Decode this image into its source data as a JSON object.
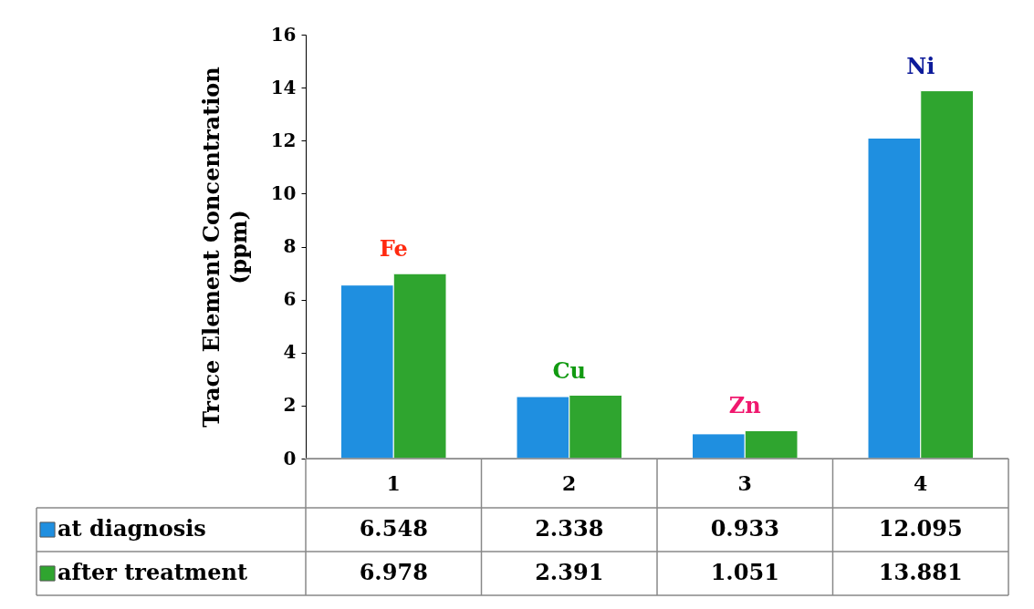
{
  "chart_data": {
    "type": "bar",
    "ylabel": "Trace Element Concentration (ppm)",
    "categories": [
      "1",
      "2",
      "3",
      "4"
    ],
    "series": [
      {
        "name": "at diagnosis",
        "color": "#1f8fe0",
        "values": [
          6.548,
          2.338,
          0.933,
          12.095
        ]
      },
      {
        "name": "after treatment",
        "color": "#2fa52f",
        "values": [
          6.978,
          2.391,
          1.051,
          13.881
        ]
      }
    ],
    "ylim": [
      0,
      16
    ],
    "yticks": [
      0,
      2,
      4,
      6,
      8,
      10,
      12,
      14,
      16
    ],
    "grid": false,
    "legend": "bottom",
    "data_labels": true,
    "annotations": [
      "Fe",
      "Cu",
      "Zn",
      "Ni"
    ]
  }
}
